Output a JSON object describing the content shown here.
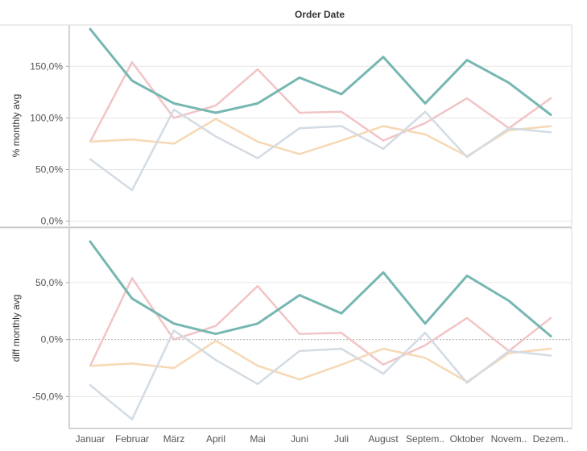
{
  "chart_data": {
    "type": "line",
    "header": "Order Date",
    "categories": [
      "Januar",
      "Februar",
      "März",
      "April",
      "Mai",
      "Juni",
      "Juli",
      "August",
      "Septem..",
      "Oktober",
      "Novem..",
      "Dezem.."
    ],
    "colors": {
      "teal": "#76b7b2",
      "pink": "#f2c4c6",
      "orange": "#f6d8b5",
      "blue": "#d3dbe3",
      "grid": "#e6e6e6",
      "zero_line": "#b0b0b0",
      "axis": "#a8a8a8",
      "tick_text": "#555555"
    },
    "panels": [
      {
        "ylabel": "% monthly avg",
        "ylim": [
          -0.05,
          1.9
        ],
        "ticks": [
          0,
          0.5,
          1.0,
          1.5
        ],
        "tick_labels": [
          "0,0%",
          "50,0%",
          "100,0%",
          "150,0%"
        ],
        "zero_line": false,
        "series": [
          {
            "color": "pink",
            "values": [
              0.77,
              1.54,
              1.0,
              1.12,
              1.47,
              1.05,
              1.06,
              0.78,
              0.95,
              1.19,
              0.9,
              1.19
            ]
          },
          {
            "color": "orange",
            "values": [
              0.77,
              0.79,
              0.75,
              0.99,
              0.77,
              0.65,
              0.78,
              0.92,
              0.84,
              0.63,
              0.88,
              0.92
            ]
          },
          {
            "color": "blue",
            "values": [
              0.6,
              0.3,
              1.08,
              0.82,
              0.61,
              0.9,
              0.92,
              0.7,
              1.06,
              0.62,
              0.9,
              0.86
            ]
          },
          {
            "color": "teal",
            "values": [
              1.86,
              1.36,
              1.14,
              1.05,
              1.14,
              1.39,
              1.23,
              1.59,
              1.14,
              1.56,
              1.34,
              1.03
            ]
          }
        ]
      },
      {
        "ylabel": "diff monthly avg",
        "ylim": [
          -0.78,
          0.98
        ],
        "ticks": [
          -0.5,
          0,
          0.5
        ],
        "tick_labels": [
          "-50,0%",
          "0,0%",
          "50,0%"
        ],
        "zero_line": true,
        "series": [
          {
            "color": "pink",
            "values": [
              -0.23,
              0.54,
              0.0,
              0.12,
              0.47,
              0.05,
              0.06,
              -0.22,
              -0.05,
              0.19,
              -0.1,
              0.19
            ]
          },
          {
            "color": "orange",
            "values": [
              -0.23,
              -0.21,
              -0.25,
              -0.01,
              -0.23,
              -0.35,
              -0.22,
              -0.08,
              -0.16,
              -0.37,
              -0.12,
              -0.08
            ]
          },
          {
            "color": "blue",
            "values": [
              -0.4,
              -0.7,
              0.08,
              -0.18,
              -0.39,
              -0.1,
              -0.08,
              -0.3,
              0.06,
              -0.38,
              -0.1,
              -0.14
            ]
          },
          {
            "color": "teal",
            "values": [
              0.86,
              0.36,
              0.14,
              0.05,
              0.14,
              0.39,
              0.23,
              0.59,
              0.14,
              0.56,
              0.34,
              0.03
            ]
          }
        ]
      }
    ]
  }
}
